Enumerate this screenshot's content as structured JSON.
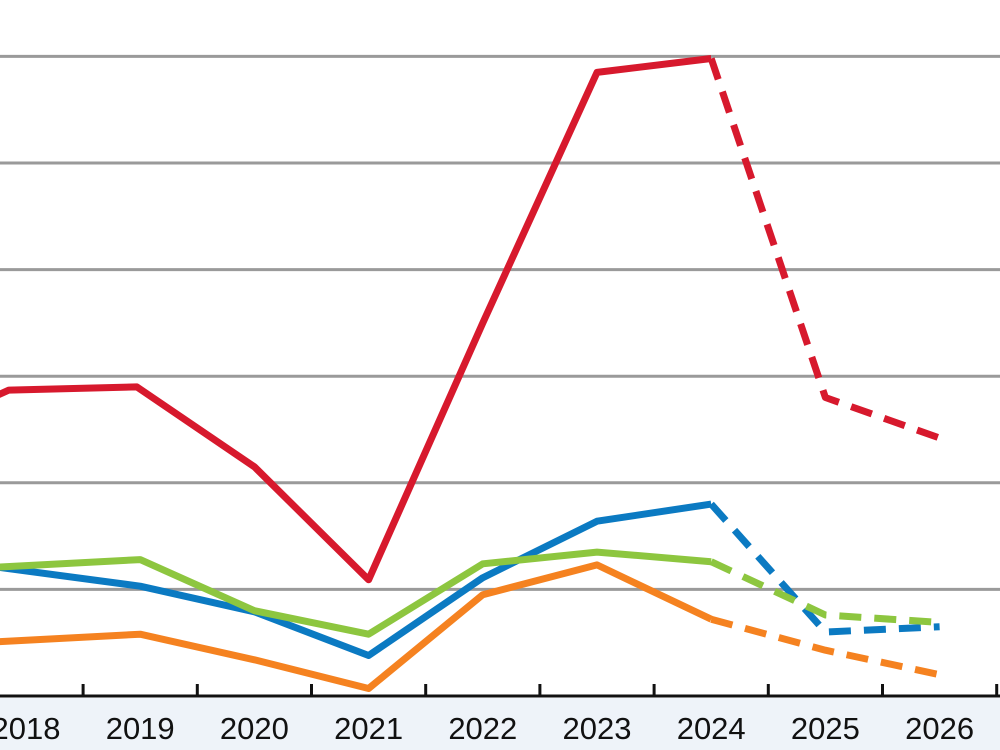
{
  "chart_data": {
    "type": "line",
    "title": "",
    "xlabel": "",
    "ylabel": "",
    "categories": [
      "2018",
      "2019",
      "2020",
      "2021",
      "2022",
      "2023",
      "2024",
      "2025",
      "2026"
    ],
    "x": [
      2018,
      2019,
      2020,
      2021,
      2022,
      2023,
      2024,
      2025,
      2026
    ],
    "ylim": [
      0,
      6
    ],
    "y_gridlines": [
      1,
      2,
      3,
      4,
      5,
      6
    ],
    "grid": true,
    "legend": "none",
    "actual_through": 2024,
    "projection_style": "dashed",
    "series": [
      {
        "color": "#d7192d",
        "x": [
          2017.6,
          2017.85,
          2018.97,
          2020.0,
          2021.0,
          2022.0,
          2023.0,
          2024.0,
          2025.0,
          2026.0
        ],
        "values": [
          2.75,
          2.87,
          2.9,
          2.15,
          1.09,
          3.5,
          5.85,
          5.98,
          2.8,
          2.42
        ]
      },
      {
        "color": "#0b7ac2",
        "x": [
          2017.6,
          2019.0,
          2020.0,
          2021.0,
          2022.0,
          2023.0,
          2024.0,
          2025.0,
          2026.0
        ],
        "values": [
          1.23,
          1.03,
          0.79,
          0.38,
          1.11,
          1.64,
          1.8,
          0.6,
          0.65
        ]
      },
      {
        "color": "#8dc63f",
        "x": [
          2017.6,
          2019.0,
          2020.0,
          2021.0,
          2022.0,
          2023.0,
          2024.0,
          2025.0,
          2026.0
        ],
        "values": [
          1.2,
          1.28,
          0.8,
          0.58,
          1.24,
          1.35,
          1.26,
          0.76,
          0.69
        ]
      },
      {
        "color": "#f58220",
        "x": [
          2017.6,
          2019.0,
          2020.0,
          2021.0,
          2022.0,
          2023.0,
          2024.0,
          2025.0,
          2026.0
        ],
        "values": [
          0.5,
          0.58,
          0.34,
          0.07,
          0.95,
          1.23,
          0.72,
          0.43,
          0.2
        ]
      }
    ]
  }
}
